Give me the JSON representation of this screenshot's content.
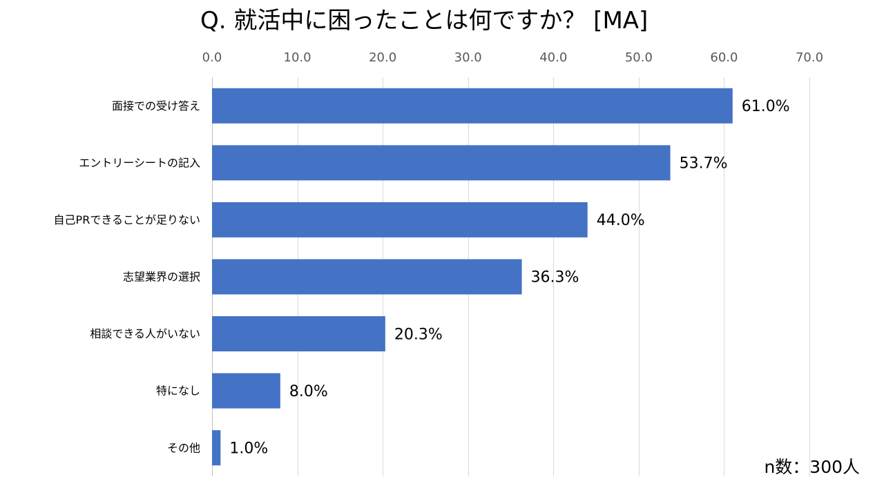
{
  "chart_data": {
    "type": "bar",
    "orientation": "horizontal",
    "title": "Q. 就活中に困ったことは何ですか？ [MA]",
    "categories": [
      "面接での受け答え",
      "エントリーシートの記入",
      "自己PRできることが足りない",
      "志望業界の選択",
      "相談できる人がいない",
      "特になし",
      "その他"
    ],
    "values": [
      61.0,
      53.7,
      44.0,
      36.3,
      20.3,
      8.0,
      1.0
    ],
    "data_labels": [
      "61.0%",
      "53.7%",
      "44.0%",
      "36.3%",
      "20.3%",
      "8.0%",
      "1.0%"
    ],
    "xlim": [
      0,
      70
    ],
    "x_ticks": [
      0,
      10,
      20,
      30,
      40,
      50,
      60,
      70
    ],
    "x_tick_labels": [
      "0.0",
      "10.0",
      "20.0",
      "30.0",
      "40.0",
      "50.0",
      "60.0",
      "70.0"
    ],
    "x_axis_position": "top",
    "grid": true,
    "note": "n数：300人"
  },
  "colors": {
    "bar": "#4472C4",
    "grid": "#D9D9D9",
    "axis": "#BFBFBF",
    "text": "#000000",
    "tick_text": "#595959"
  }
}
